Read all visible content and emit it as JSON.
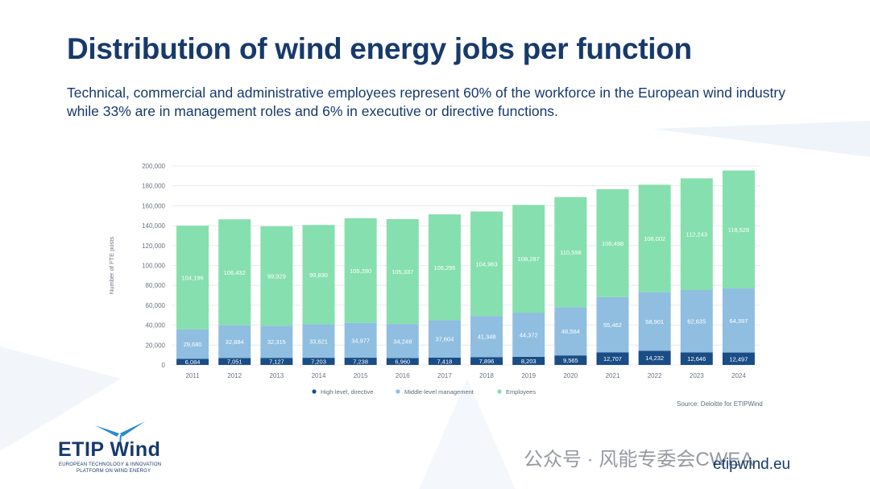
{
  "slide": {
    "title": "Distribution of wind energy jobs per function",
    "subtitle": "Technical, commercial and administrative employees represent 60% of the workforce in the European wind industry while 33% are in management roles and 6% in executive or directive functions.",
    "source": "Source: Deloitte for ETIPWind",
    "website": "etipwind.eu",
    "watermark": "公众号 · 风能专委会CWEA"
  },
  "logo": {
    "name": "ETIP Wind",
    "line1": "EUROPEAN TECHNOLOGY & INNOVATION",
    "line2": "PLATFORM ON WIND ENERGY"
  },
  "colors": {
    "title": "#173a6b",
    "high_level": "#1a4d86",
    "middle_level": "#8fbee0",
    "employees": "#86dfae"
  },
  "chart_data": {
    "type": "bar",
    "stacked": true,
    "ylabel": "Number of FTE posts",
    "xlabel": "",
    "ylim": [
      0,
      200000
    ],
    "yticks": [
      "0",
      "20,000",
      "40,000",
      "60,000",
      "80,000",
      "100,000",
      "120,000",
      "140,000",
      "160,000",
      "180,000",
      "200,000"
    ],
    "ytick_values": [
      0,
      20000,
      40000,
      60000,
      80000,
      100000,
      120000,
      140000,
      160000,
      180000,
      200000
    ],
    "grid": true,
    "legend_position": "bottom",
    "categories": [
      "2011",
      "2012",
      "2013",
      "2014",
      "2015",
      "2016",
      "2017",
      "2018",
      "2019",
      "2020",
      "2021",
      "2022",
      "2023",
      "2024"
    ],
    "series": [
      {
        "name": "High-level, directive",
        "values": [
          6084,
          7051,
          7127,
          7203,
          7238,
          6960,
          7418,
          7896,
          8203,
          9565,
          12707,
          14232,
          12646,
          12497
        ],
        "labels": [
          "6,084",
          "7,051",
          "7,127",
          "7,203",
          "7,238",
          "6,960",
          "7,418",
          "7,896",
          "8,203",
          "9,565",
          "12,707",
          "14,232",
          "12,646",
          "12,497"
        ]
      },
      {
        "name": "Middle-level management",
        "values": [
          29680,
          32884,
          32315,
          33621,
          34977,
          34248,
          37604,
          41348,
          44372,
          48564,
          55462,
          58901,
          62635,
          64397
        ],
        "labels": [
          "29,680",
          "32,884",
          "32,315",
          "33,621",
          "34,977",
          "34,248",
          "37,604",
          "41,348",
          "44,372",
          "48,564",
          "55,462",
          "58,901",
          "62,635",
          "64,397"
        ]
      },
      {
        "name": "Employees",
        "values": [
          104196,
          106432,
          99929,
          99830,
          105280,
          105337,
          106295,
          104963,
          108287,
          110598,
          108498,
          108002,
          112243,
          118528
        ],
        "labels": [
          "104,196",
          "106,432",
          "99,929",
          "99,830",
          "105,280",
          "105,337",
          "106,295",
          "104,963",
          "108,287",
          "110,598",
          "108,498",
          "108,002",
          "112,243",
          "118,528"
        ]
      }
    ]
  }
}
